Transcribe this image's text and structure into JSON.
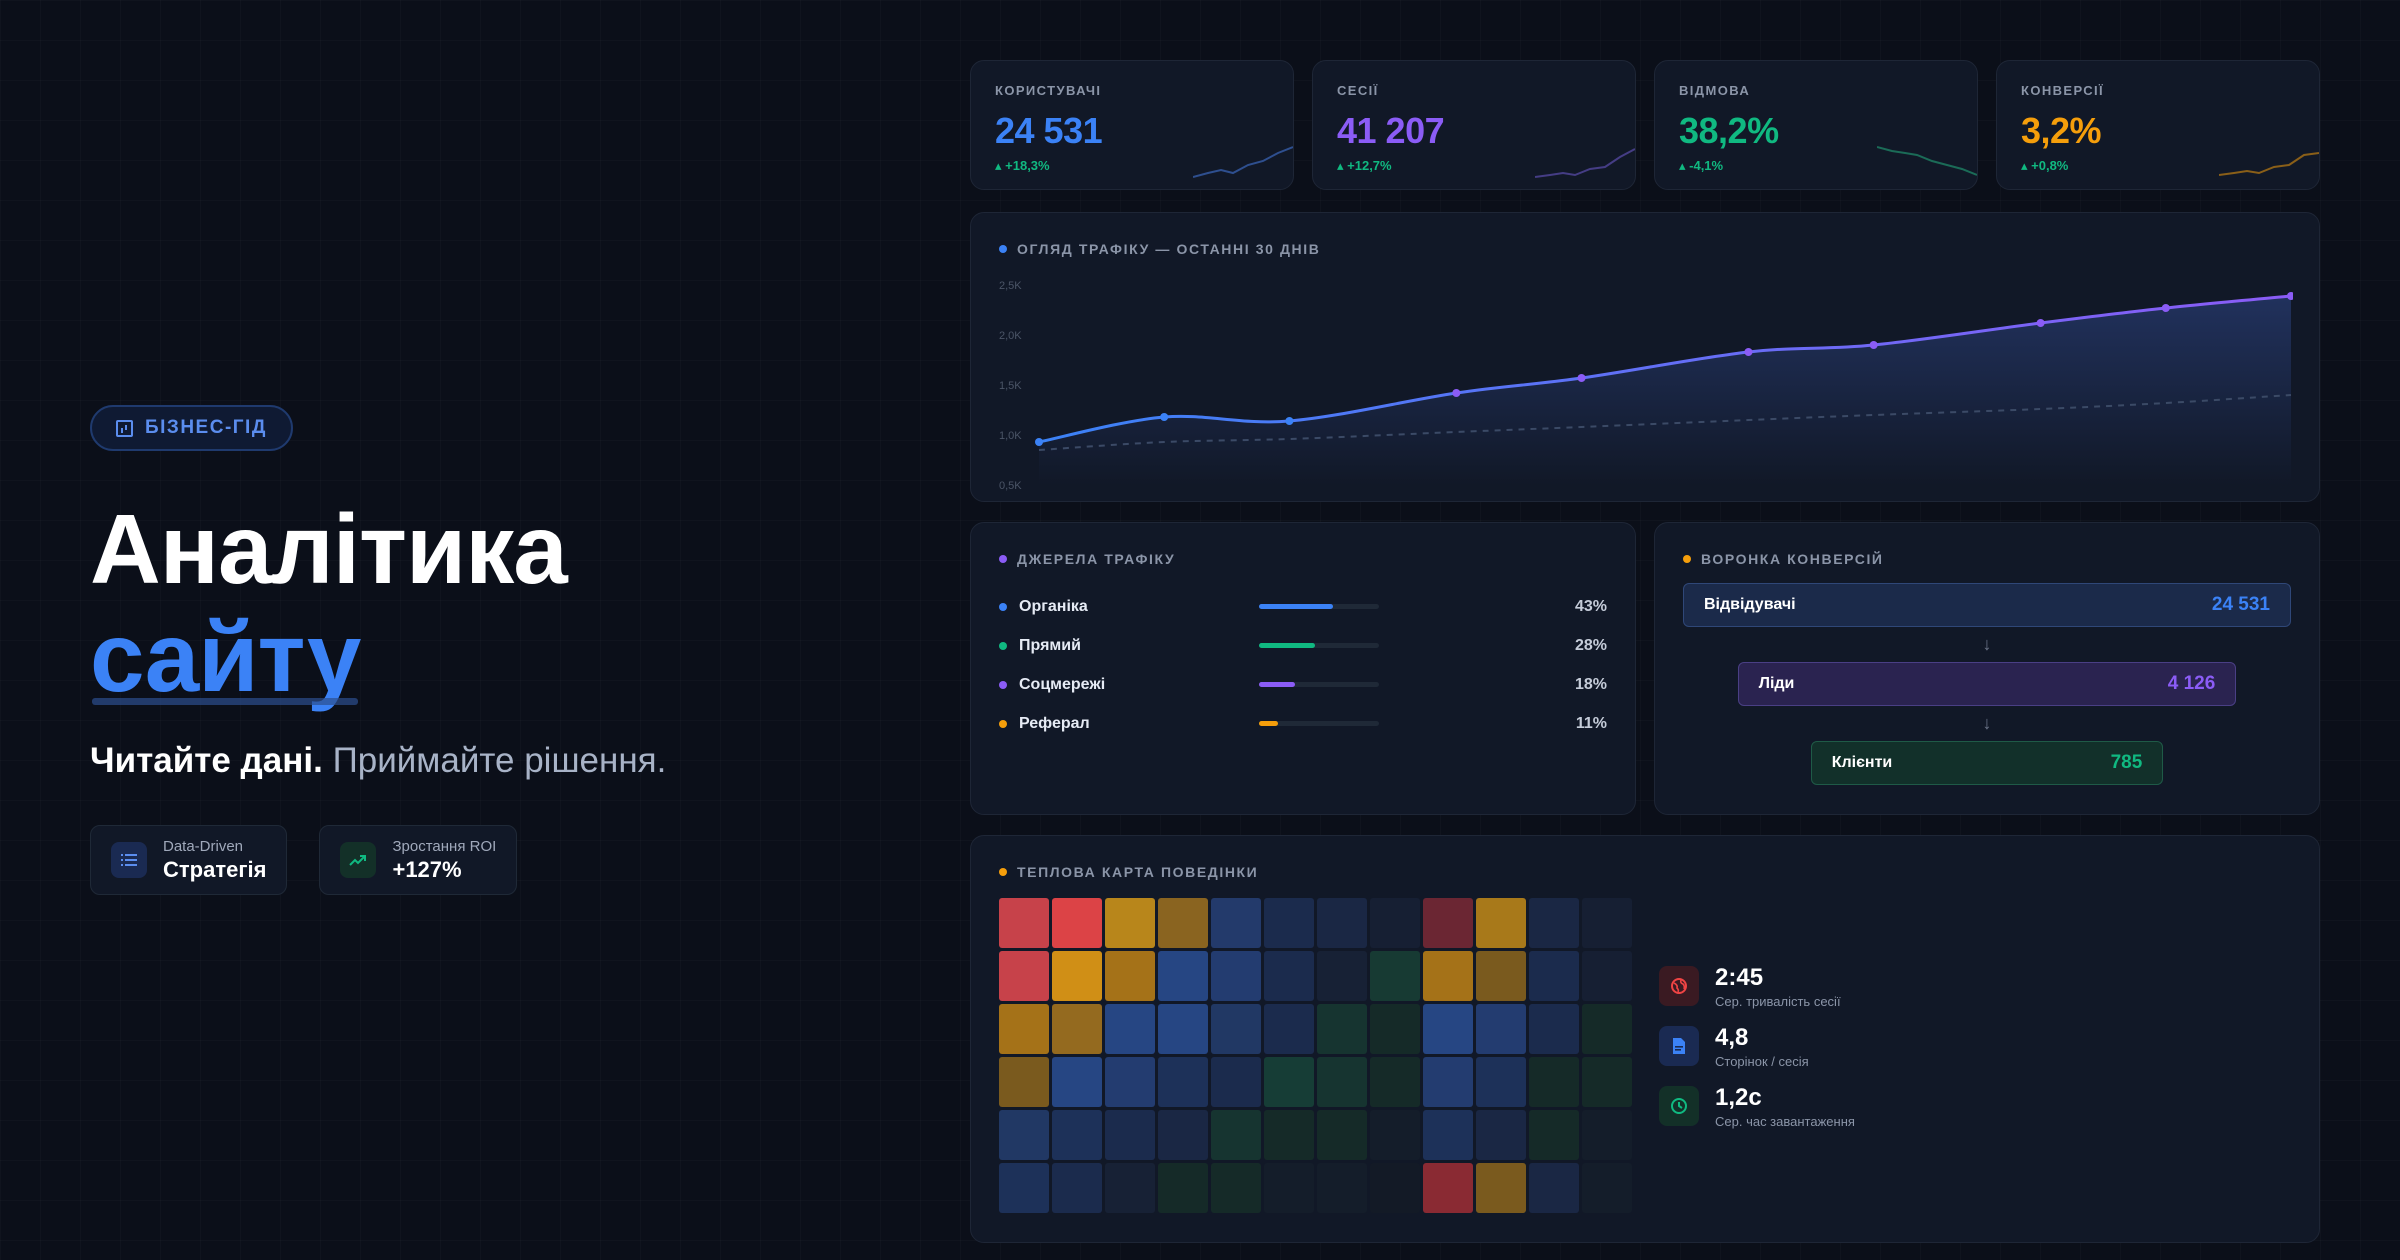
{
  "hero": {
    "badge": "БІЗНЕС-ГІД",
    "title_line1": "Аналітика",
    "title_line2": "сайту",
    "tagline_bold": "Читайте дані.",
    "tagline_rest": "Приймайте рішення.",
    "chips": [
      {
        "label": "Data-Driven",
        "value": "Стратегія"
      },
      {
        "label": "Зростання ROI",
        "value": "+127%"
      }
    ]
  },
  "kpis": [
    {
      "label": "КОРИСТУВАЧІ",
      "value": "24 531",
      "change": "+18,3%",
      "color": "#3b82f6"
    },
    {
      "label": "СЕСІЇ",
      "value": "41 207",
      "change": "+12,7%",
      "color": "#8b5cf6"
    },
    {
      "label": "ВІДМОВА",
      "value": "38,2%",
      "change": "-4,1%",
      "color": "#10b981"
    },
    {
      "label": "КОНВЕРСІЇ",
      "value": "3,2%",
      "change": "+0,8%",
      "color": "#f59e0b"
    }
  ],
  "traffic": {
    "title": "ОГЛЯД ТРАФІКУ — ОСТАННІ 30 ДНІВ"
  },
  "chart_data": {
    "type": "line",
    "title": "ОГЛЯД ТРАФІКУ — ОСТАННІ 30 ДНІВ",
    "ytick_labels": [
      "2,5K",
      "2,0K",
      "1,5K",
      "1,0K",
      "0,5K"
    ],
    "ylim": [
      0.5,
      2.5
    ],
    "x": [
      0,
      3,
      6,
      10,
      13,
      17,
      20,
      24,
      27,
      30
    ],
    "series": [
      {
        "values": [
          0.93,
          1.18,
          1.14,
          1.42,
          1.57,
          1.83,
          1.9,
          2.12,
          2.27,
          2.39
        ],
        "color": "#7c6cf0",
        "style": "solid"
      },
      {
        "values": [
          0.85,
          0.93,
          0.96,
          1.03,
          1.08,
          1.15,
          1.2,
          1.26,
          1.32,
          1.4
        ],
        "color": "#3b4a66",
        "style": "dashed"
      }
    ],
    "markers": [
      0,
      1,
      2,
      3,
      4,
      5,
      6,
      7,
      8,
      9
    ]
  },
  "sources": {
    "title": "ДЖЕРЕЛА ТРАФІКУ",
    "items": [
      {
        "name": "Органіка",
        "pct": "43%",
        "share": 0.62,
        "color": "#3b82f6"
      },
      {
        "name": "Прямий",
        "pct": "28%",
        "share": 0.47,
        "color": "#10b981"
      },
      {
        "name": "Соцмережі",
        "pct": "18%",
        "share": 0.3,
        "color": "#8b5cf6"
      },
      {
        "name": "Реферал",
        "pct": "11%",
        "share": 0.16,
        "color": "#f59e0b"
      }
    ]
  },
  "funnel": {
    "title": "ВОРОНКА КОНВЕРСІЙ",
    "stages": [
      {
        "name": "Відвідувачі",
        "value": "24 531",
        "bg": "#1b2a4a",
        "border": "#2f4778",
        "color": "#3b82f6"
      },
      {
        "name": "Ліди",
        "value": "4 126",
        "bg": "#2a2350",
        "border": "#4a3f85",
        "color": "#8b5cf6"
      },
      {
        "name": "Клієнти",
        "value": "785",
        "bg": "#12302a",
        "border": "#1f5a47",
        "color": "#10b981"
      }
    ]
  },
  "heatmap": {
    "title": "ТЕПЛОВА КАРТА ПОВЕДІНКИ",
    "rows": [
      [
        "#c7424a",
        "#dc4346",
        "#b8861b",
        "#8a6420",
        "#233a6b",
        "#1b2b4d",
        "#1a2744",
        "#161f33",
        "#6b2633",
        "#a8791a",
        "#1a2744",
        "#161f33"
      ],
      [
        "#c7424a",
        "#d08f16",
        "#a57218",
        "#264683",
        "#233c70",
        "#1b2b4d",
        "#172135",
        "#173a33",
        "#a57218",
        "#7a5a1e",
        "#1b2b4d",
        "#161f33"
      ],
      [
        "#a57218",
        "#946a1f",
        "#264683",
        "#264683",
        "#213864",
        "#1b2b4d",
        "#163430",
        "#152a28",
        "#264683",
        "#233c70",
        "#1b2b4d",
        "#152a28"
      ],
      [
        "#7a5a1e",
        "#264683",
        "#233c70",
        "#1d3159",
        "#1b2b4d",
        "#163d36",
        "#163430",
        "#152a28",
        "#233c70",
        "#1d3159",
        "#152a28",
        "#152a28"
      ],
      [
        "#213864",
        "#1d3159",
        "#1b2b4d",
        "#1a2744",
        "#163430",
        "#152a28",
        "#152a28",
        "#141d2a",
        "#1d3159",
        "#1a2744",
        "#152a28",
        "#141d2a"
      ],
      [
        "#1d3159",
        "#1b2b4d",
        "#172135",
        "#152a28",
        "#152a28",
        "#141d2a",
        "#141d2a",
        "#131a26",
        "#8a2a33",
        "#7a5a1e",
        "#1a2744",
        "#141d2a"
      ]
    ],
    "stats": [
      {
        "value": "2:45",
        "label": "Сер. тривалість сесії",
        "icon": "globe-icon",
        "color": "#ef4444",
        "bg": "#3a1a22"
      },
      {
        "value": "4,8",
        "label": "Сторінок / сесія",
        "icon": "document-icon",
        "color": "#3b82f6",
        "bg": "#1a2a52"
      },
      {
        "value": "1,2с",
        "label": "Сер. час завантаження",
        "icon": "clock-icon",
        "color": "#10b981",
        "bg": "#133028"
      }
    ]
  }
}
